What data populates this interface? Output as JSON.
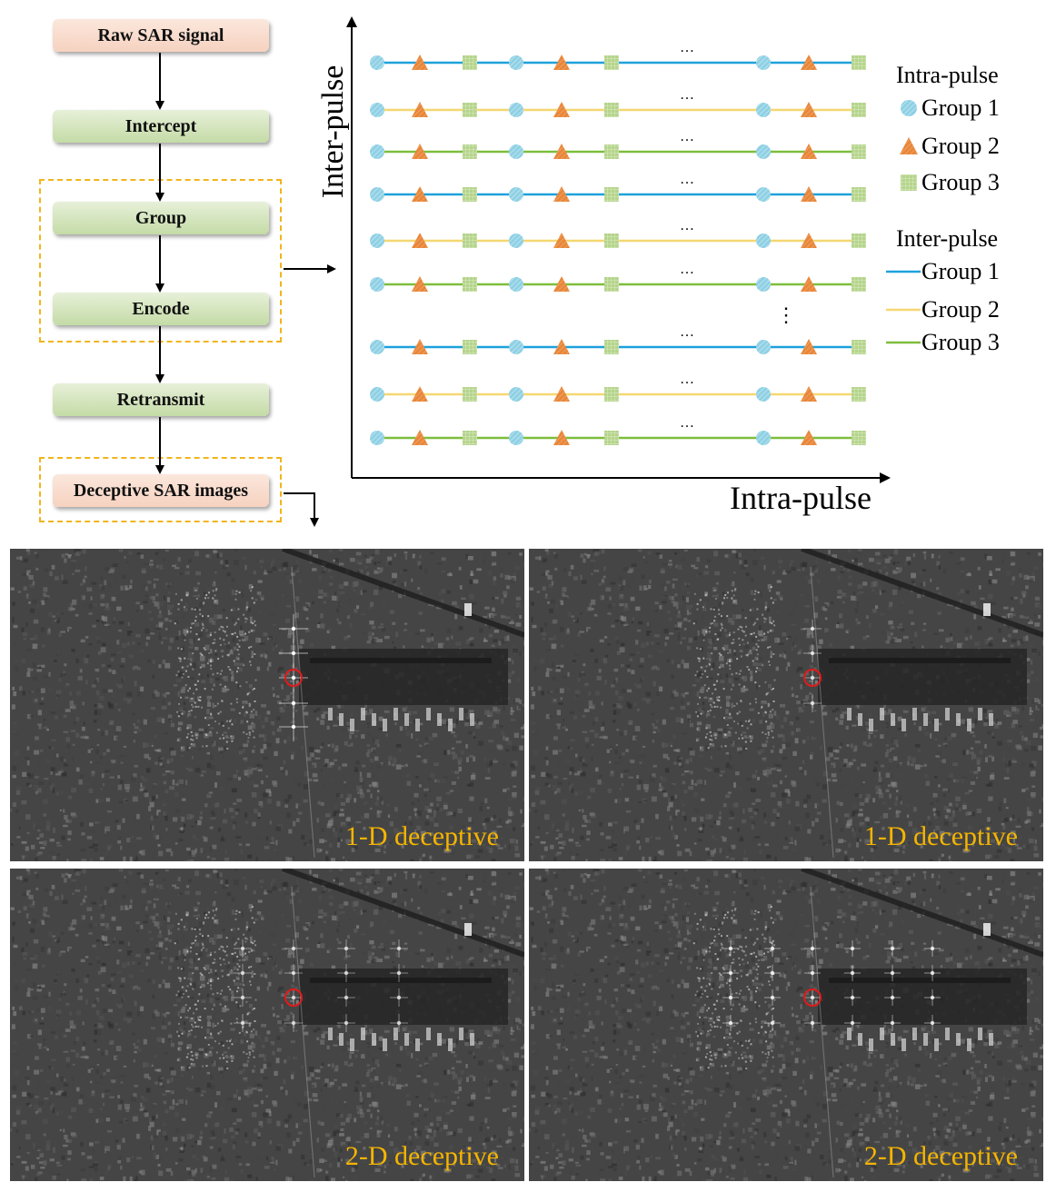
{
  "flowchart": {
    "steps": [
      "Raw SAR signal",
      "Intercept",
      "Group",
      "Encode",
      "Retransmit",
      "Deceptive SAR images"
    ]
  },
  "diagram": {
    "y_axis_label": "Inter-pulse",
    "x_axis_label": "Intra-pulse",
    "row_ellipsis": "…",
    "col_ellipsis": "⋮",
    "row_colors": [
      "blue",
      "yellow",
      "green",
      "blue",
      "yellow",
      "green",
      "blue",
      "yellow",
      "green"
    ],
    "symbol_sequence": [
      "circle",
      "triangle",
      "square",
      "circle",
      "triangle",
      "square",
      "circle",
      "triangle",
      "square"
    ]
  },
  "legend": {
    "intra_title": "Intra-pulse",
    "intra_items": [
      {
        "label": "Group 1",
        "shape": "circle",
        "color": "#8fd0e4"
      },
      {
        "label": "Group 2",
        "shape": "triangle",
        "color": "#e8873a"
      },
      {
        "label": "Group 3",
        "shape": "square",
        "color": "#b5d48c"
      }
    ],
    "inter_title": "Inter-pulse",
    "inter_items": [
      {
        "label": "Group 1",
        "color": "#1ea1dc"
      },
      {
        "label": "Group 2",
        "color": "#f4d772"
      },
      {
        "label": "Group 3",
        "color": "#7dbe3c"
      }
    ]
  },
  "images": [
    {
      "label": "1-D deceptive",
      "pattern": "1d-vertical"
    },
    {
      "label": "1-D deceptive",
      "pattern": "1d-vertical-weak"
    },
    {
      "label": "2-D deceptive",
      "pattern": "2d-sparse"
    },
    {
      "label": "2-D deceptive",
      "pattern": "2d-dense"
    }
  ],
  "colors": {
    "accent_label": "#f4b400",
    "target_circle": "#e01b1b",
    "dash_frame": "#f2b41c"
  }
}
